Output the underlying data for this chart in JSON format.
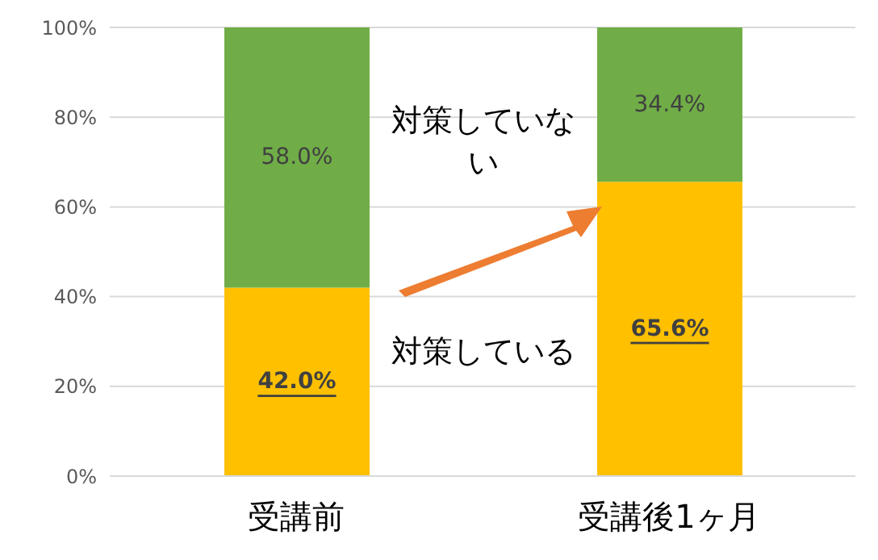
{
  "chart_data": {
    "type": "bar",
    "stacked": true,
    "categories": [
      "受講前",
      "受講後1ヶ月"
    ],
    "series": [
      {
        "name": "対策している",
        "color": "#ffc000",
        "values": [
          42.0,
          65.6
        ],
        "value_labels": [
          "42.0%",
          "65.6%"
        ]
      },
      {
        "name": "対策していない",
        "color": "#70ad47",
        "values": [
          58.0,
          34.4
        ],
        "value_labels": [
          "58.0%",
          "34.4%"
        ]
      }
    ],
    "ylim": [
      0,
      100
    ],
    "yticks": [
      {
        "value": 0,
        "label": "0%"
      },
      {
        "value": 20,
        "label": "20%"
      },
      {
        "value": 40,
        "label": "40%"
      },
      {
        "value": 60,
        "label": "60%"
      },
      {
        "value": 80,
        "label": "80%"
      },
      {
        "value": 100,
        "label": "100%"
      }
    ],
    "grid": "y",
    "legend": false
  }
}
